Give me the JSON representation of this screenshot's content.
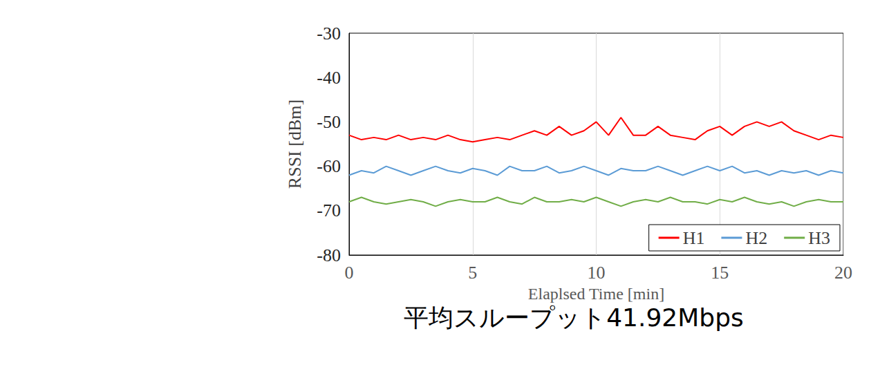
{
  "chart_data": {
    "type": "line",
    "title": "平均スループット41.92Mbps",
    "x_label": "Elaplsed Time [min]",
    "y_label": "RSSI [dBm]",
    "x": [
      0,
      0.5,
      1,
      1.5,
      2,
      2.5,
      3,
      3.5,
      4,
      4.5,
      5,
      5.5,
      6,
      6.5,
      7,
      7.5,
      8,
      8.5,
      9,
      9.5,
      10,
      10.5,
      11,
      11.5,
      12,
      12.5,
      13,
      13.5,
      14,
      14.5,
      15,
      15.5,
      16,
      16.5,
      17,
      17.5,
      18,
      18.5,
      19,
      19.5,
      20
    ],
    "series": [
      {
        "name": "H1",
        "color": "#ff0000",
        "values": [
          -53,
          -54,
          -53.5,
          -54,
          -53,
          -54,
          -53.5,
          -54,
          -53,
          -54,
          -54.5,
          -54,
          -53.5,
          -54,
          -53,
          -52,
          -53,
          -51,
          -53,
          -52,
          -50,
          -53,
          -49,
          -53,
          -53,
          -51,
          -53,
          -53.5,
          -54,
          -52,
          -51,
          -53,
          -51,
          -50,
          -51,
          -50,
          -52,
          -53,
          -54,
          -53,
          -53.5
        ]
      },
      {
        "name": "H2",
        "color": "#5b9bd5",
        "values": [
          -62,
          -61,
          -61.5,
          -60,
          -61,
          -62,
          -61,
          -60,
          -61,
          -61.5,
          -60.5,
          -61,
          -62,
          -60,
          -61,
          -61,
          -60,
          -61.5,
          -61,
          -60,
          -61,
          -62,
          -60.5,
          -61,
          -61,
          -60,
          -61,
          -62,
          -61,
          -60,
          -61,
          -60,
          -61.5,
          -61,
          -62,
          -61,
          -61.5,
          -61,
          -62,
          -61,
          -61.5
        ]
      },
      {
        "name": "H3",
        "color": "#70ad47",
        "values": [
          -68,
          -67,
          -68,
          -68.5,
          -68,
          -67.5,
          -68,
          -69,
          -68,
          -67.5,
          -68,
          -68,
          -67,
          -68,
          -68.5,
          -67,
          -68,
          -68,
          -67.5,
          -68,
          -67,
          -68,
          -69,
          -68,
          -67.5,
          -68,
          -67,
          -68,
          -68,
          -68.5,
          -67.5,
          -68,
          -67,
          -68,
          -68.5,
          -68,
          -69,
          -68,
          -67.5,
          -68,
          -68
        ]
      }
    ],
    "xlim": [
      0,
      20
    ],
    "xticks": [
      0,
      5,
      10,
      15,
      20
    ],
    "ylim": [
      -80,
      -30
    ],
    "yticks": [
      -80,
      -70,
      -60,
      -50,
      -40,
      -30
    ],
    "grid": true,
    "legend": "lower right"
  }
}
